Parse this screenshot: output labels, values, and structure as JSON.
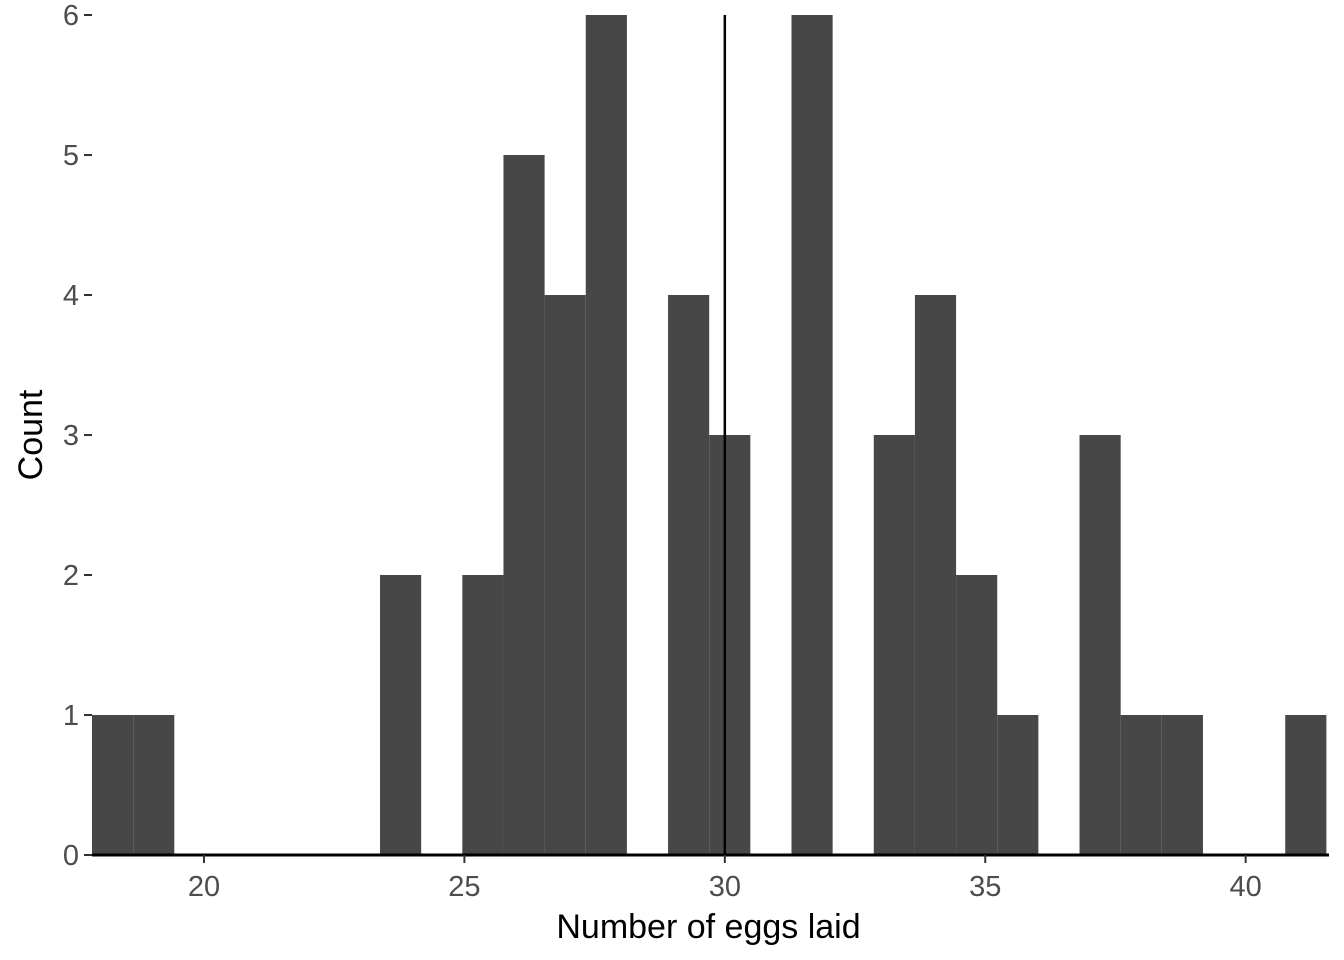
{
  "chart_data": {
    "type": "bar",
    "subtype": "histogram",
    "xlabel": "Number of eggs laid",
    "ylabel": "Count",
    "xlim": [
      17.85,
      41.6
    ],
    "ylim": [
      0,
      6
    ],
    "x_ticks": [
      20,
      25,
      30,
      35,
      40
    ],
    "y_ticks": [
      0,
      1,
      2,
      3,
      4,
      5,
      6
    ],
    "bin_width": 0.79,
    "bins": [
      {
        "start": 17.85,
        "count": 1
      },
      {
        "start": 18.64,
        "count": 1
      },
      {
        "start": 19.43,
        "count": 0
      },
      {
        "start": 20.22,
        "count": 0
      },
      {
        "start": 21.01,
        "count": 0
      },
      {
        "start": 21.8,
        "count": 0
      },
      {
        "start": 22.59,
        "count": 0
      },
      {
        "start": 23.38,
        "count": 2
      },
      {
        "start": 24.17,
        "count": 0
      },
      {
        "start": 24.96,
        "count": 2
      },
      {
        "start": 25.75,
        "count": 5
      },
      {
        "start": 26.54,
        "count": 4
      },
      {
        "start": 27.33,
        "count": 6
      },
      {
        "start": 28.12,
        "count": 0
      },
      {
        "start": 28.91,
        "count": 4
      },
      {
        "start": 29.7,
        "count": 3
      },
      {
        "start": 30.49,
        "count": 0
      },
      {
        "start": 31.28,
        "count": 6
      },
      {
        "start": 32.07,
        "count": 0
      },
      {
        "start": 32.86,
        "count": 3
      },
      {
        "start": 33.65,
        "count": 4
      },
      {
        "start": 34.44,
        "count": 2
      },
      {
        "start": 35.23,
        "count": 1
      },
      {
        "start": 36.02,
        "count": 0
      },
      {
        "start": 36.81,
        "count": 3
      },
      {
        "start": 37.6,
        "count": 1
      },
      {
        "start": 38.39,
        "count": 1
      },
      {
        "start": 39.18,
        "count": 0
      },
      {
        "start": 39.97,
        "count": 0
      },
      {
        "start": 40.76,
        "count": 1
      }
    ],
    "reference_line_x": 30,
    "grid": false,
    "colors": {
      "bar": "#474747",
      "axis": "#000000",
      "tick_text": "#4d4d4d",
      "reference_line": "#000000"
    }
  }
}
